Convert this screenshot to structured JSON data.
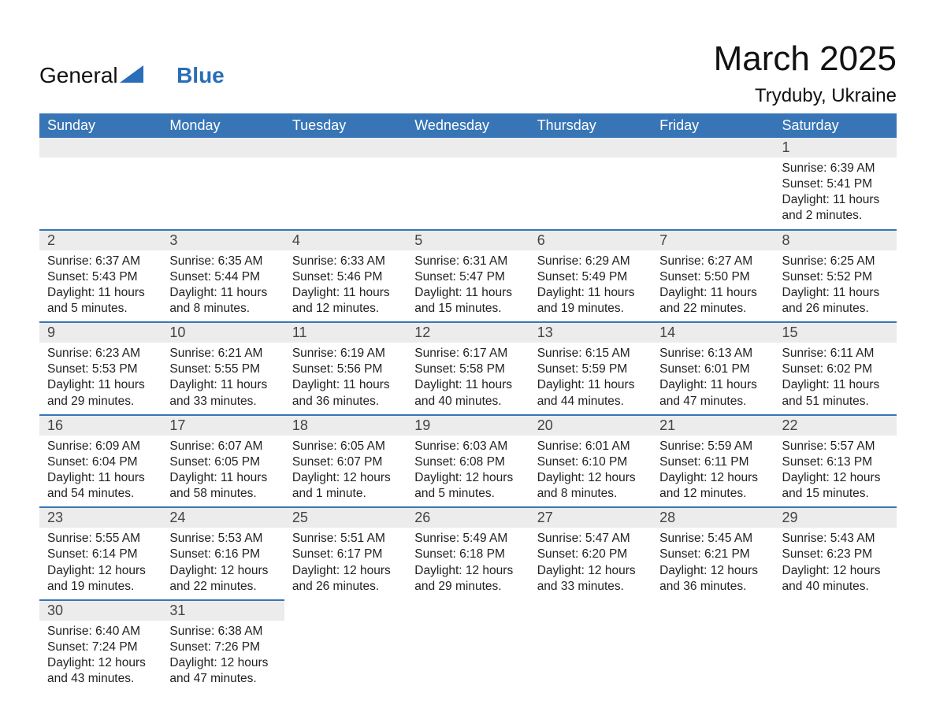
{
  "brand": {
    "word1": "General",
    "word2": "Blue",
    "accent_color": "#2a6db8"
  },
  "header": {
    "month_title": "March 2025",
    "location": "Tryduby, Ukraine"
  },
  "calendar": {
    "header_bg": "#3775b6",
    "header_fg": "#ffffff",
    "divider_color": "#3775b6",
    "stripe_bg": "#ececec",
    "day_labels": [
      "Sunday",
      "Monday",
      "Tuesday",
      "Wednesday",
      "Thursday",
      "Friday",
      "Saturday"
    ],
    "weeks": [
      [
        null,
        null,
        null,
        null,
        null,
        null,
        {
          "n": "1",
          "sunrise": "Sunrise: 6:39 AM",
          "sunset": "Sunset: 5:41 PM",
          "day1": "Daylight: 11 hours",
          "day2": "and 2 minutes."
        }
      ],
      [
        {
          "n": "2",
          "sunrise": "Sunrise: 6:37 AM",
          "sunset": "Sunset: 5:43 PM",
          "day1": "Daylight: 11 hours",
          "day2": "and 5 minutes."
        },
        {
          "n": "3",
          "sunrise": "Sunrise: 6:35 AM",
          "sunset": "Sunset: 5:44 PM",
          "day1": "Daylight: 11 hours",
          "day2": "and 8 minutes."
        },
        {
          "n": "4",
          "sunrise": "Sunrise: 6:33 AM",
          "sunset": "Sunset: 5:46 PM",
          "day1": "Daylight: 11 hours",
          "day2": "and 12 minutes."
        },
        {
          "n": "5",
          "sunrise": "Sunrise: 6:31 AM",
          "sunset": "Sunset: 5:47 PM",
          "day1": "Daylight: 11 hours",
          "day2": "and 15 minutes."
        },
        {
          "n": "6",
          "sunrise": "Sunrise: 6:29 AM",
          "sunset": "Sunset: 5:49 PM",
          "day1": "Daylight: 11 hours",
          "day2": "and 19 minutes."
        },
        {
          "n": "7",
          "sunrise": "Sunrise: 6:27 AM",
          "sunset": "Sunset: 5:50 PM",
          "day1": "Daylight: 11 hours",
          "day2": "and 22 minutes."
        },
        {
          "n": "8",
          "sunrise": "Sunrise: 6:25 AM",
          "sunset": "Sunset: 5:52 PM",
          "day1": "Daylight: 11 hours",
          "day2": "and 26 minutes."
        }
      ],
      [
        {
          "n": "9",
          "sunrise": "Sunrise: 6:23 AM",
          "sunset": "Sunset: 5:53 PM",
          "day1": "Daylight: 11 hours",
          "day2": "and 29 minutes."
        },
        {
          "n": "10",
          "sunrise": "Sunrise: 6:21 AM",
          "sunset": "Sunset: 5:55 PM",
          "day1": "Daylight: 11 hours",
          "day2": "and 33 minutes."
        },
        {
          "n": "11",
          "sunrise": "Sunrise: 6:19 AM",
          "sunset": "Sunset: 5:56 PM",
          "day1": "Daylight: 11 hours",
          "day2": "and 36 minutes."
        },
        {
          "n": "12",
          "sunrise": "Sunrise: 6:17 AM",
          "sunset": "Sunset: 5:58 PM",
          "day1": "Daylight: 11 hours",
          "day2": "and 40 minutes."
        },
        {
          "n": "13",
          "sunrise": "Sunrise: 6:15 AM",
          "sunset": "Sunset: 5:59 PM",
          "day1": "Daylight: 11 hours",
          "day2": "and 44 minutes."
        },
        {
          "n": "14",
          "sunrise": "Sunrise: 6:13 AM",
          "sunset": "Sunset: 6:01 PM",
          "day1": "Daylight: 11 hours",
          "day2": "and 47 minutes."
        },
        {
          "n": "15",
          "sunrise": "Sunrise: 6:11 AM",
          "sunset": "Sunset: 6:02 PM",
          "day1": "Daylight: 11 hours",
          "day2": "and 51 minutes."
        }
      ],
      [
        {
          "n": "16",
          "sunrise": "Sunrise: 6:09 AM",
          "sunset": "Sunset: 6:04 PM",
          "day1": "Daylight: 11 hours",
          "day2": "and 54 minutes."
        },
        {
          "n": "17",
          "sunrise": "Sunrise: 6:07 AM",
          "sunset": "Sunset: 6:05 PM",
          "day1": "Daylight: 11 hours",
          "day2": "and 58 minutes."
        },
        {
          "n": "18",
          "sunrise": "Sunrise: 6:05 AM",
          "sunset": "Sunset: 6:07 PM",
          "day1": "Daylight: 12 hours",
          "day2": "and 1 minute."
        },
        {
          "n": "19",
          "sunrise": "Sunrise: 6:03 AM",
          "sunset": "Sunset: 6:08 PM",
          "day1": "Daylight: 12 hours",
          "day2": "and 5 minutes."
        },
        {
          "n": "20",
          "sunrise": "Sunrise: 6:01 AM",
          "sunset": "Sunset: 6:10 PM",
          "day1": "Daylight: 12 hours",
          "day2": "and 8 minutes."
        },
        {
          "n": "21",
          "sunrise": "Sunrise: 5:59 AM",
          "sunset": "Sunset: 6:11 PM",
          "day1": "Daylight: 12 hours",
          "day2": "and 12 minutes."
        },
        {
          "n": "22",
          "sunrise": "Sunrise: 5:57 AM",
          "sunset": "Sunset: 6:13 PM",
          "day1": "Daylight: 12 hours",
          "day2": "and 15 minutes."
        }
      ],
      [
        {
          "n": "23",
          "sunrise": "Sunrise: 5:55 AM",
          "sunset": "Sunset: 6:14 PM",
          "day1": "Daylight: 12 hours",
          "day2": "and 19 minutes."
        },
        {
          "n": "24",
          "sunrise": "Sunrise: 5:53 AM",
          "sunset": "Sunset: 6:16 PM",
          "day1": "Daylight: 12 hours",
          "day2": "and 22 minutes."
        },
        {
          "n": "25",
          "sunrise": "Sunrise: 5:51 AM",
          "sunset": "Sunset: 6:17 PM",
          "day1": "Daylight: 12 hours",
          "day2": "and 26 minutes."
        },
        {
          "n": "26",
          "sunrise": "Sunrise: 5:49 AM",
          "sunset": "Sunset: 6:18 PM",
          "day1": "Daylight: 12 hours",
          "day2": "and 29 minutes."
        },
        {
          "n": "27",
          "sunrise": "Sunrise: 5:47 AM",
          "sunset": "Sunset: 6:20 PM",
          "day1": "Daylight: 12 hours",
          "day2": "and 33 minutes."
        },
        {
          "n": "28",
          "sunrise": "Sunrise: 5:45 AM",
          "sunset": "Sunset: 6:21 PM",
          "day1": "Daylight: 12 hours",
          "day2": "and 36 minutes."
        },
        {
          "n": "29",
          "sunrise": "Sunrise: 5:43 AM",
          "sunset": "Sunset: 6:23 PM",
          "day1": "Daylight: 12 hours",
          "day2": "and 40 minutes."
        }
      ],
      [
        {
          "n": "30",
          "sunrise": "Sunrise: 6:40 AM",
          "sunset": "Sunset: 7:24 PM",
          "day1": "Daylight: 12 hours",
          "day2": "and 43 minutes."
        },
        {
          "n": "31",
          "sunrise": "Sunrise: 6:38 AM",
          "sunset": "Sunset: 7:26 PM",
          "day1": "Daylight: 12 hours",
          "day2": "and 47 minutes."
        },
        null,
        null,
        null,
        null,
        null
      ]
    ]
  }
}
